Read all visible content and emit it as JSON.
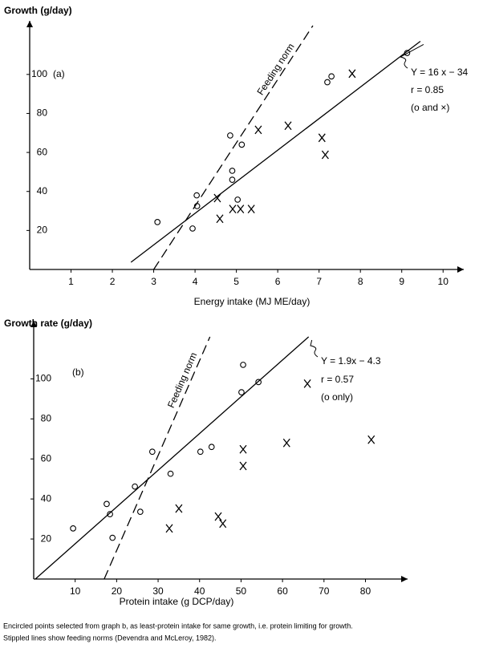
{
  "chart_data": [
    {
      "type": "scatter",
      "panel": "(a)",
      "ylabel": "Growth (g/day)",
      "xlabel": "Energy intake (MJ ME/day)",
      "xlim": [
        0,
        10.5
      ],
      "ylim": [
        0,
        125
      ],
      "xticks": [
        1,
        2,
        3,
        4,
        5,
        6,
        7,
        8,
        9,
        10
      ],
      "yticks": [
        20,
        40,
        60,
        80,
        100
      ],
      "series": [
        {
          "marker": "o",
          "color": "#000000",
          "x": [
            3.09,
            4.04,
            4.05,
            3.94,
            4.85,
            5.13,
            4.9,
            4.9,
            5.03,
            7.3,
            7.2,
            9.13
          ],
          "values": [
            24.3,
            38,
            32.5,
            21,
            68.7,
            64,
            50.6,
            46,
            35.8,
            99,
            96,
            111
          ]
        },
        {
          "marker": "x",
          "color": "#000000",
          "x": [
            4.54,
            4.6,
            4.91,
            5.1,
            5.36,
            5.53,
            6.25,
            7.07,
            7.15,
            7.8
          ],
          "values": [
            36.6,
            26,
            31,
            31,
            31,
            71.6,
            73.7,
            67.5,
            58.8,
            100.4
          ]
        }
      ],
      "lines": [
        {
          "name": "Y = 16 x − 34",
          "style": "solid",
          "x": [
            2.45,
            9.45
          ],
          "values": [
            3.7,
            117
          ]
        },
        {
          "name": "Feeding norm",
          "style": "dashed",
          "x": [
            3.0,
            6.85
          ],
          "values": [
            0,
            125
          ]
        }
      ],
      "annotations": [
        "r = 0.85",
        "(o and ×)"
      ]
    },
    {
      "type": "scatter",
      "panel": "(b)",
      "ylabel": "Growth rate (g/day)",
      "xlabel": "Protein intake (g DCP/day)",
      "xlim": [
        0,
        89
      ],
      "ylim": [
        0,
        125
      ],
      "xticks": [
        10,
        20,
        30,
        40,
        50,
        60,
        70,
        80
      ],
      "yticks": [
        20,
        40,
        60,
        80,
        100
      ],
      "series": [
        {
          "marker": "o",
          "color": "#000000",
          "x": [
            9.5,
            17.6,
            18.4,
            19,
            25.7,
            24.4,
            28.6,
            33,
            40.2,
            42.9,
            50.1,
            50.5,
            54.2
          ],
          "values": [
            25.3,
            37.5,
            32.4,
            20.6,
            33.6,
            46.2,
            63.6,
            52.6,
            63.6,
            66,
            93.3,
            107,
            98.4
          ]
        },
        {
          "marker": "x",
          "color": "#000000",
          "x": [
            32.7,
            35,
            44.5,
            45.6,
            50.5,
            50.5,
            61,
            66,
            81.4
          ],
          "values": [
            25.3,
            35.2,
            31.2,
            27.7,
            64.8,
            56.5,
            68,
            97.6,
            69.6
          ]
        }
      ],
      "lines": [
        {
          "name": "Y = 1.9x − 4.3",
          "style": "solid",
          "x": [
            0.4,
            66.3
          ],
          "values": [
            0,
            121
          ]
        },
        {
          "name": "Feeding norm",
          "style": "dashed",
          "x": [
            17,
            42.5
          ],
          "values": [
            0,
            121
          ]
        }
      ],
      "annotations": [
        "r = 0.57",
        "(o only)"
      ]
    }
  ],
  "caption": [
    "Encircled points selected from graph b, as least-protein intake for same growth, i.e. protein limiting for growth.",
    "Stippled lines show feeding norms (Devendra and McLeroy, 1982)."
  ]
}
